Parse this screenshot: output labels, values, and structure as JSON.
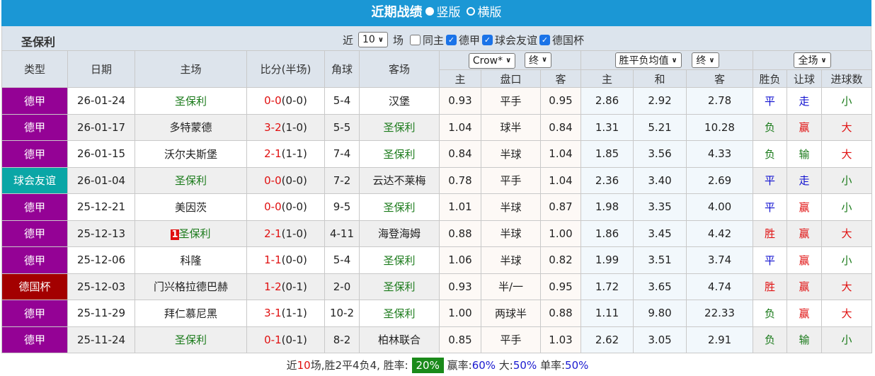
{
  "header": {
    "title": "近期战绩",
    "view_vertical": "竖版",
    "view_horizontal": "横版"
  },
  "toolbar": {
    "team": "圣保利",
    "recent_prefix": "近",
    "count_value": "10",
    "recent_suffix": "场",
    "same_home": "同主",
    "leagues": [
      "德甲",
      "球会友谊",
      "德国杯"
    ]
  },
  "columns": {
    "type": "类型",
    "date": "日期",
    "home": "主场",
    "score": "比分(半场)",
    "corners": "角球",
    "away": "客场",
    "company": "Crow*",
    "company_stage": "终",
    "avg": "胜平负均值",
    "avg_stage": "终",
    "period": "全场",
    "ah_home": "主",
    "ah_line": "盘口",
    "ah_away": "客",
    "eu_home": "主",
    "eu_draw": "和",
    "eu_away": "客",
    "result": "胜负",
    "handicap": "让球",
    "goals": "进球数"
  },
  "colors": {
    "德甲": "#940295",
    "球会友谊": "#0aa6a6",
    "德国杯": "#a30000",
    "accent": "#1b97d5"
  },
  "rows": [
    {
      "type": "德甲",
      "date": "26-01-24",
      "home": "圣保利",
      "home_green": true,
      "score": "0-0",
      "half": "(0-0)",
      "corners": "5-4",
      "away": "汉堡",
      "away_green": false,
      "ah": [
        "0.93",
        "平手",
        "0.95"
      ],
      "eu": [
        "2.86",
        "2.92",
        "2.78"
      ],
      "result": "平",
      "hc": "走",
      "goals": "小"
    },
    {
      "type": "德甲",
      "date": "26-01-17",
      "home": "多特蒙德",
      "home_green": false,
      "score": "3-2",
      "half": "(1-0)",
      "corners": "5-5",
      "away": "圣保利",
      "away_green": true,
      "ah": [
        "1.04",
        "球半",
        "0.84"
      ],
      "eu": [
        "1.31",
        "5.21",
        "10.28"
      ],
      "result": "负",
      "hc": "赢",
      "goals": "大"
    },
    {
      "type": "德甲",
      "date": "26-01-15",
      "home": "沃尔夫斯堡",
      "home_green": false,
      "score": "2-1",
      "half": "(1-1)",
      "corners": "7-4",
      "away": "圣保利",
      "away_green": true,
      "ah": [
        "0.84",
        "半球",
        "1.04"
      ],
      "eu": [
        "1.85",
        "3.56",
        "4.33"
      ],
      "result": "负",
      "hc": "输",
      "goals": "大"
    },
    {
      "type": "球会友谊",
      "date": "26-01-04",
      "home": "圣保利",
      "home_green": true,
      "score": "0-0",
      "half": "(0-0)",
      "corners": "7-2",
      "away": "云达不莱梅",
      "away_green": false,
      "ah": [
        "0.78",
        "平手",
        "1.04"
      ],
      "eu": [
        "2.36",
        "3.40",
        "2.69"
      ],
      "result": "平",
      "hc": "走",
      "goals": "小"
    },
    {
      "type": "德甲",
      "date": "25-12-21",
      "home": "美因茨",
      "home_green": false,
      "score": "0-0",
      "half": "(0-0)",
      "corners": "9-5",
      "away": "圣保利",
      "away_green": true,
      "ah": [
        "1.01",
        "半球",
        "0.87"
      ],
      "eu": [
        "1.98",
        "3.35",
        "4.00"
      ],
      "result": "平",
      "hc": "赢",
      "goals": "小"
    },
    {
      "type": "德甲",
      "date": "25-12-13",
      "home": "圣保利",
      "home_rank": "1",
      "home_green": true,
      "score": "2-1",
      "half": "(1-0)",
      "corners": "4-11",
      "away": "海登海姆",
      "away_green": false,
      "ah": [
        "0.88",
        "半球",
        "1.00"
      ],
      "eu": [
        "1.86",
        "3.45",
        "4.42"
      ],
      "result": "胜",
      "hc": "赢",
      "goals": "大"
    },
    {
      "type": "德甲",
      "date": "25-12-06",
      "home": "科隆",
      "home_green": false,
      "score": "1-1",
      "half": "(0-0)",
      "corners": "5-4",
      "away": "圣保利",
      "away_green": true,
      "ah": [
        "1.06",
        "半球",
        "0.82"
      ],
      "eu": [
        "1.99",
        "3.51",
        "3.74"
      ],
      "result": "平",
      "hc": "赢",
      "goals": "小"
    },
    {
      "type": "德国杯",
      "date": "25-12-03",
      "home": "门兴格拉德巴赫",
      "home_green": false,
      "score": "1-2",
      "half": "(0-1)",
      "corners": "2-0",
      "away": "圣保利",
      "away_green": true,
      "ah": [
        "0.93",
        "半/一",
        "0.95"
      ],
      "eu": [
        "1.72",
        "3.65",
        "4.74"
      ],
      "result": "胜",
      "hc": "赢",
      "goals": "大"
    },
    {
      "type": "德甲",
      "date": "25-11-29",
      "home": "拜仁慕尼黑",
      "home_green": false,
      "score": "3-1",
      "half": "(1-1)",
      "corners": "10-2",
      "away": "圣保利",
      "away_green": true,
      "ah": [
        "1.00",
        "两球半",
        "0.88"
      ],
      "eu": [
        "1.11",
        "9.80",
        "22.33"
      ],
      "result": "负",
      "hc": "赢",
      "goals": "大"
    },
    {
      "type": "德甲",
      "date": "25-11-24",
      "home": "圣保利",
      "home_green": true,
      "score": "0-1",
      "half": "(0-1)",
      "corners": "8-2",
      "away": "柏林联合",
      "away_green": false,
      "ah": [
        "0.85",
        "平手",
        "1.03"
      ],
      "eu": [
        "2.62",
        "3.05",
        "2.91"
      ],
      "result": "负",
      "hc": "输",
      "goals": "小"
    }
  ],
  "summary": {
    "p1": "近",
    "n": "10",
    "p2": "场,胜2平4负4, 胜率:",
    "win_rate": "20%",
    "l1": " 赢率:",
    "v1": "60%",
    "l2": " 大:",
    "v2": "50%",
    "l3": " 单率:",
    "v3": "50%"
  }
}
